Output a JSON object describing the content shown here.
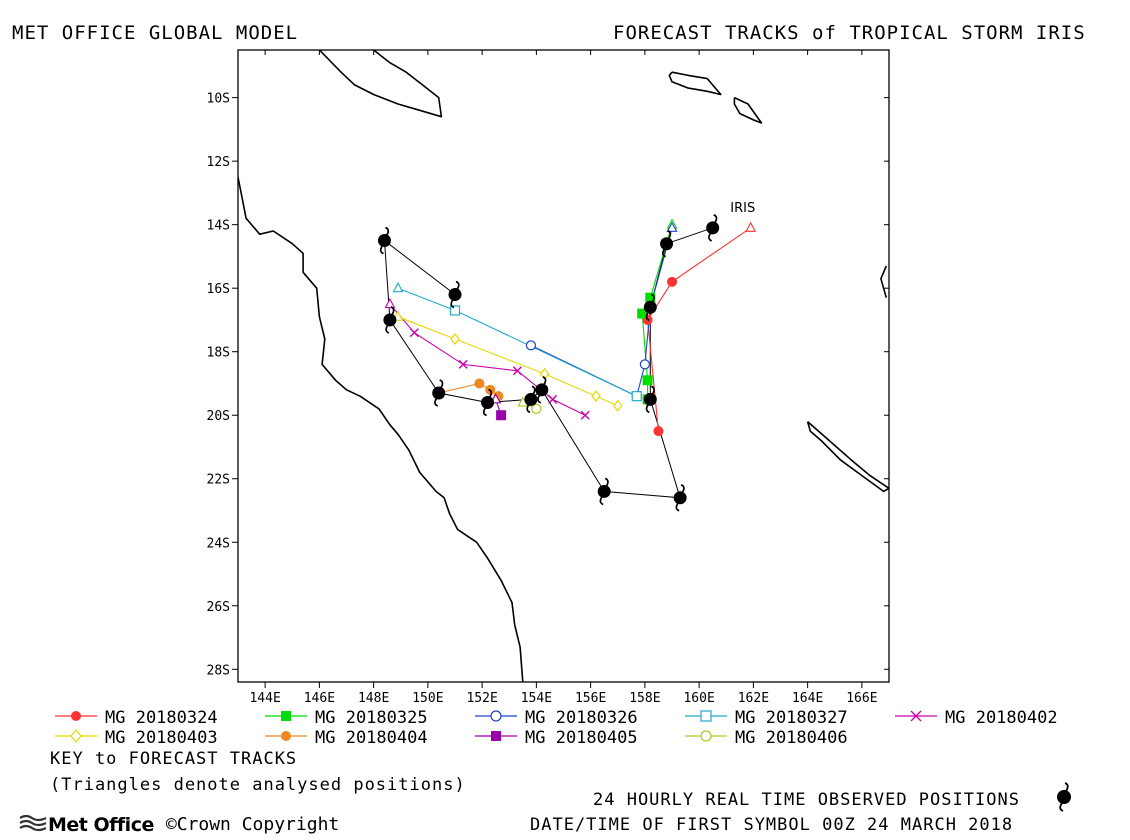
{
  "header": {
    "left": "MET OFFICE GLOBAL MODEL",
    "right": "FORECAST TRACKS of TROPICAL STORM IRIS"
  },
  "map": {
    "lon_range": [
      143,
      167
    ],
    "lat_range": [
      -28.4,
      -8.5
    ],
    "x_ticks": [
      "144E",
      "146E",
      "148E",
      "150E",
      "152E",
      "154E",
      "156E",
      "158E",
      "160E",
      "162E",
      "164E",
      "166E"
    ],
    "y_ticks": [
      "10S",
      "12S",
      "14S",
      "16S",
      "18S",
      "20S",
      "22S",
      "24S",
      "26S",
      "28S"
    ],
    "storm_label": "IRIS",
    "coast_color": "#000000"
  },
  "observed": [
    [
      160.5,
      -14.1
    ],
    [
      158.8,
      -14.6
    ],
    [
      158.2,
      -16.6
    ],
    [
      158.2,
      -19.5
    ],
    [
      159.3,
      -22.6
    ],
    [
      156.5,
      -22.4
    ],
    [
      154.2,
      -19.2
    ],
    [
      153.8,
      -19.5
    ],
    [
      152.2,
      -19.6
    ],
    [
      150.4,
      -19.3
    ],
    [
      148.6,
      -17.0
    ],
    [
      148.4,
      -14.5
    ],
    [
      151.0,
      -16.2
    ]
  ],
  "tracks": [
    {
      "name": "MG 20180324",
      "color": "#ff3333",
      "marker": "filled-circle",
      "points": [
        [
          161.9,
          -14.1
        ],
        [
          159.0,
          -15.8
        ],
        [
          158.1,
          -17.0
        ],
        [
          158.5,
          -20.5
        ]
      ]
    },
    {
      "name": "MG 20180325",
      "color": "#00dd00",
      "marker": "filled-square",
      "points": [
        [
          159.0,
          -14.0
        ],
        [
          158.2,
          -16.3
        ],
        [
          157.9,
          -16.8
        ],
        [
          158.1,
          -18.9
        ],
        [
          158.1,
          -19.5
        ]
      ]
    },
    {
      "name": "MG 20180326",
      "color": "#2244cc",
      "marker": "open-circle",
      "points": [
        [
          159.0,
          -14.1
        ],
        [
          158.2,
          -16.6
        ],
        [
          158.0,
          -18.4
        ],
        [
          157.7,
          -19.4
        ],
        [
          153.8,
          -17.8
        ]
      ]
    },
    {
      "name": "MG 20180327",
      "color": "#22aacc",
      "marker": "open-square",
      "points": [
        [
          148.9,
          -16.0
        ],
        [
          151.0,
          -16.7
        ],
        [
          157.7,
          -19.4
        ]
      ]
    },
    {
      "name": "MG 20180402",
      "color": "#cc00aa",
      "marker": "x",
      "points": [
        [
          148.6,
          -16.5
        ],
        [
          149.5,
          -17.4
        ],
        [
          151.3,
          -18.4
        ],
        [
          153.3,
          -18.6
        ],
        [
          154.6,
          -19.5
        ],
        [
          155.8,
          -20.0
        ]
      ]
    },
    {
      "name": "MG 20180403",
      "color": "#e8d800",
      "marker": "open-diamond",
      "points": [
        [
          148.9,
          -16.9
        ],
        [
          151.0,
          -17.6
        ],
        [
          154.3,
          -18.7
        ],
        [
          156.2,
          -19.4
        ],
        [
          157.0,
          -19.7
        ]
      ]
    },
    {
      "name": "MG 20180404",
      "color": "#ee8822",
      "marker": "filled-circle",
      "points": [
        [
          150.4,
          -19.3
        ],
        [
          151.9,
          -19.0
        ],
        [
          152.3,
          -19.2
        ],
        [
          152.6,
          -19.4
        ]
      ]
    },
    {
      "name": "MG 20180405",
      "color": "#9900aa",
      "marker": "filled-square",
      "points": [
        [
          152.5,
          -19.5
        ],
        [
          152.7,
          -20.0
        ]
      ]
    },
    {
      "name": "MG 20180406",
      "color": "#aacc22",
      "marker": "open-circle",
      "points": [
        [
          153.5,
          -19.6
        ],
        [
          154.0,
          -19.8
        ]
      ]
    }
  ],
  "legend": {
    "key_title": "KEY to FORECAST TRACKS",
    "key_note": "(Triangles denote analysed positions)"
  },
  "footer": {
    "observed_label": "24 HOURLY REAL TIME OBSERVED POSITIONS",
    "datetime_label": "DATE/TIME OF FIRST SYMBOL 00Z 24 MARCH 2018",
    "logo_text": "Met Office",
    "copyright": "Crown Copyright"
  }
}
